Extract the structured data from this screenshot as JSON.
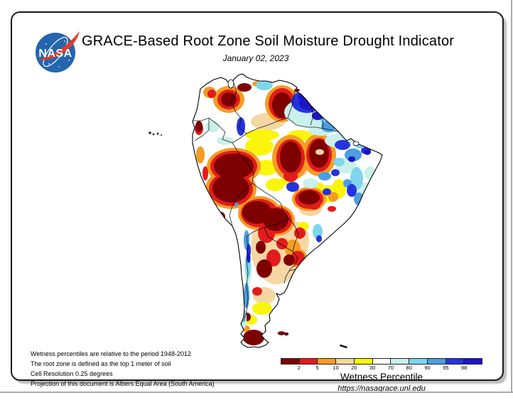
{
  "header": {
    "title": "GRACE-Based Root Zone Soil Moisture Drought Indicator",
    "date": "January 02, 2023"
  },
  "logo": {
    "text": "NASA"
  },
  "notes": [
    "Wetness percentiles are relative to the period 1948-2012",
    "The root zone is defined as the top 1 meter of soil",
    "Cell Resolution 0.25 degrees",
    "Projection of this document is Albers Equal Area (South America)"
  ],
  "legend": {
    "title": "Wetness Percentile",
    "url": "https://nasagrace.unl.edu",
    "ticks": [
      "2",
      "5",
      "10",
      "20",
      "30",
      "70",
      "80",
      "90",
      "95",
      "98"
    ],
    "colors": [
      "#7e0101",
      "#e31b1c",
      "#f59c22",
      "#f5d7a3",
      "#fbf50c",
      "#ffffff",
      "#c9f0eb",
      "#7ed5ec",
      "#4c9edf",
      "#2633dc",
      "#1b16c5"
    ]
  }
}
